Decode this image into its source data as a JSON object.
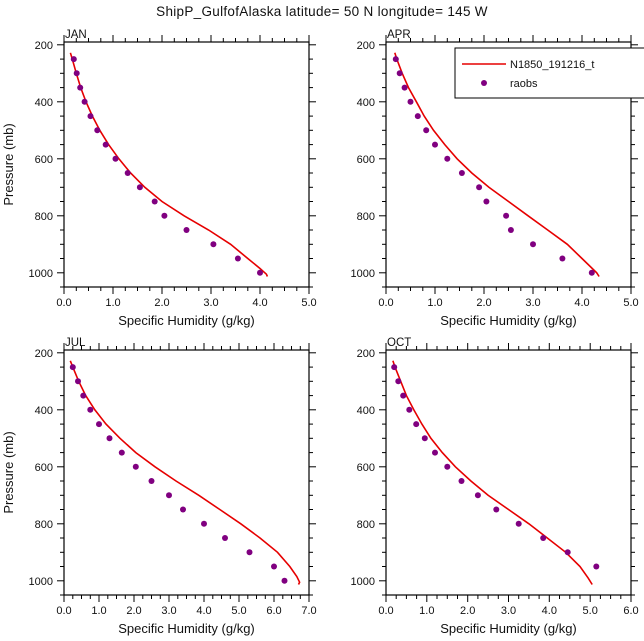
{
  "title": "ShipP_GulfofAlaska  latitude= 50 N longitude= 145 W",
  "colors": {
    "line": "#e60000",
    "dots": "#800080",
    "text": "#111111"
  },
  "legend": {
    "entries": [
      {
        "type": "line",
        "label": "N1850_191216_t"
      },
      {
        "type": "dot",
        "label": "raobs"
      }
    ]
  },
  "chart_data": [
    {
      "type": "line+scatter",
      "label": "JAN",
      "xlabel": "Specific Humidity (g/kg)",
      "ylabel": "Pressure (mb)",
      "xlim": [
        0,
        5
      ],
      "xticks": [
        0,
        1,
        2,
        3,
        4,
        5
      ],
      "xtick_labels": [
        "0.0",
        "1.0",
        "2.0",
        "3.0",
        "4.0",
        "5.0"
      ],
      "xminor_step": 0.25,
      "ylim": [
        190,
        1050
      ],
      "yticks": [
        200,
        400,
        600,
        800,
        1000
      ],
      "yminor_step": 50,
      "series": [
        {
          "name": "N1850_191216_t",
          "type": "line",
          "pressure": [
            228,
            250,
            300,
            350,
            400,
            450,
            500,
            550,
            600,
            650,
            700,
            750,
            800,
            850,
            900,
            950,
            985,
            1005,
            1013
          ],
          "values": [
            0.13,
            0.17,
            0.25,
            0.34,
            0.45,
            0.58,
            0.73,
            0.91,
            1.12,
            1.36,
            1.65,
            2.0,
            2.45,
            2.95,
            3.4,
            3.75,
            4.0,
            4.13,
            4.15
          ]
        },
        {
          "name": "raobs",
          "type": "scatter",
          "pressure": [
            250,
            300,
            350,
            400,
            450,
            500,
            550,
            600,
            650,
            700,
            750,
            800,
            850,
            900,
            950,
            1000
          ],
          "values": [
            0.2,
            0.26,
            0.33,
            0.42,
            0.54,
            0.68,
            0.85,
            1.05,
            1.3,
            1.55,
            1.85,
            2.05,
            2.5,
            3.05,
            3.55,
            4.0
          ]
        }
      ]
    },
    {
      "type": "line+scatter",
      "label": "APR",
      "xlabel": "Specific Humidity (g/kg)",
      "ylabel": "Pressure (mb)",
      "xlim": [
        0,
        5
      ],
      "xticks": [
        0,
        1,
        2,
        3,
        4,
        5
      ],
      "xtick_labels": [
        "0.0",
        "1.0",
        "2.0",
        "3.0",
        "4.0",
        "5.0"
      ],
      "xminor_step": 0.25,
      "ylim": [
        190,
        1050
      ],
      "yticks": [
        200,
        400,
        600,
        800,
        1000
      ],
      "yminor_step": 50,
      "series": [
        {
          "name": "N1850_191216_t",
          "type": "line",
          "pressure": [
            228,
            250,
            300,
            350,
            400,
            450,
            500,
            550,
            600,
            650,
            700,
            750,
            800,
            850,
            900,
            950,
            1000,
            1013
          ],
          "values": [
            0.18,
            0.22,
            0.33,
            0.46,
            0.62,
            0.78,
            0.97,
            1.2,
            1.45,
            1.75,
            2.1,
            2.5,
            2.9,
            3.3,
            3.7,
            4.0,
            4.3,
            4.35
          ]
        },
        {
          "name": "raobs",
          "type": "scatter",
          "pressure": [
            250,
            300,
            350,
            400,
            450,
            500,
            550,
            600,
            650,
            700,
            750,
            800,
            850,
            900,
            950,
            1000
          ],
          "values": [
            0.2,
            0.28,
            0.38,
            0.5,
            0.65,
            0.82,
            1.0,
            1.25,
            1.55,
            1.9,
            2.05,
            2.45,
            2.55,
            3.0,
            3.6,
            4.2
          ]
        }
      ]
    },
    {
      "type": "line+scatter",
      "label": "JUL",
      "xlabel": "Specific Humidity (g/kg)",
      "ylabel": "Pressure (mb)",
      "xlim": [
        0,
        7
      ],
      "xticks": [
        0,
        1,
        2,
        3,
        4,
        5,
        6,
        7
      ],
      "xtick_labels": [
        "0.0",
        "1.0",
        "2.0",
        "3.0",
        "4.0",
        "5.0",
        "6.0",
        "7.0"
      ],
      "xminor_step": 0.25,
      "ylim": [
        190,
        1050
      ],
      "yticks": [
        200,
        400,
        600,
        800,
        1000
      ],
      "yminor_step": 50,
      "series": [
        {
          "name": "N1850_191216_t",
          "type": "line",
          "pressure": [
            228,
            250,
            300,
            350,
            400,
            450,
            500,
            550,
            600,
            650,
            700,
            750,
            800,
            850,
            900,
            950,
            985,
            1005,
            1013
          ],
          "values": [
            0.18,
            0.25,
            0.42,
            0.62,
            0.88,
            1.2,
            1.6,
            2.05,
            2.6,
            3.2,
            3.85,
            4.45,
            5.05,
            5.6,
            6.1,
            6.45,
            6.65,
            6.73,
            6.7
          ]
        },
        {
          "name": "raobs",
          "type": "scatter",
          "pressure": [
            250,
            300,
            350,
            400,
            450,
            500,
            550,
            600,
            650,
            700,
            750,
            800,
            850,
            900,
            950,
            1000
          ],
          "values": [
            0.25,
            0.4,
            0.55,
            0.75,
            1.0,
            1.3,
            1.65,
            2.05,
            2.5,
            3.0,
            3.4,
            4.0,
            4.6,
            5.3,
            6.0,
            6.3
          ]
        }
      ]
    },
    {
      "type": "line+scatter",
      "label": "OCT",
      "xlabel": "Specific Humidity (g/kg)",
      "ylabel": "Pressure (mb)",
      "xlim": [
        0,
        6
      ],
      "xticks": [
        0,
        1,
        2,
        3,
        4,
        5,
        6
      ],
      "xtick_labels": [
        "0.0",
        "1.0",
        "2.0",
        "3.0",
        "4.0",
        "5.0",
        "6.0"
      ],
      "xminor_step": 0.25,
      "ylim": [
        190,
        1050
      ],
      "yticks": [
        200,
        400,
        600,
        800,
        1000
      ],
      "yminor_step": 50,
      "series": [
        {
          "name": "N1850_191216_t",
          "type": "line",
          "pressure": [
            228,
            250,
            300,
            350,
            400,
            450,
            500,
            550,
            600,
            650,
            700,
            750,
            800,
            850,
            900,
            950,
            990,
            1013
          ],
          "values": [
            0.17,
            0.22,
            0.36,
            0.5,
            0.68,
            0.88,
            1.1,
            1.38,
            1.7,
            2.08,
            2.5,
            3.0,
            3.5,
            3.95,
            4.4,
            4.75,
            4.95,
            5.05
          ]
        },
        {
          "name": "raobs",
          "type": "scatter",
          "pressure": [
            250,
            300,
            350,
            400,
            450,
            500,
            550,
            600,
            650,
            700,
            750,
            800,
            850,
            900,
            950
          ],
          "values": [
            0.2,
            0.3,
            0.42,
            0.57,
            0.74,
            0.95,
            1.2,
            1.5,
            1.85,
            2.25,
            2.7,
            3.25,
            3.85,
            4.45,
            5.15
          ]
        }
      ]
    }
  ]
}
